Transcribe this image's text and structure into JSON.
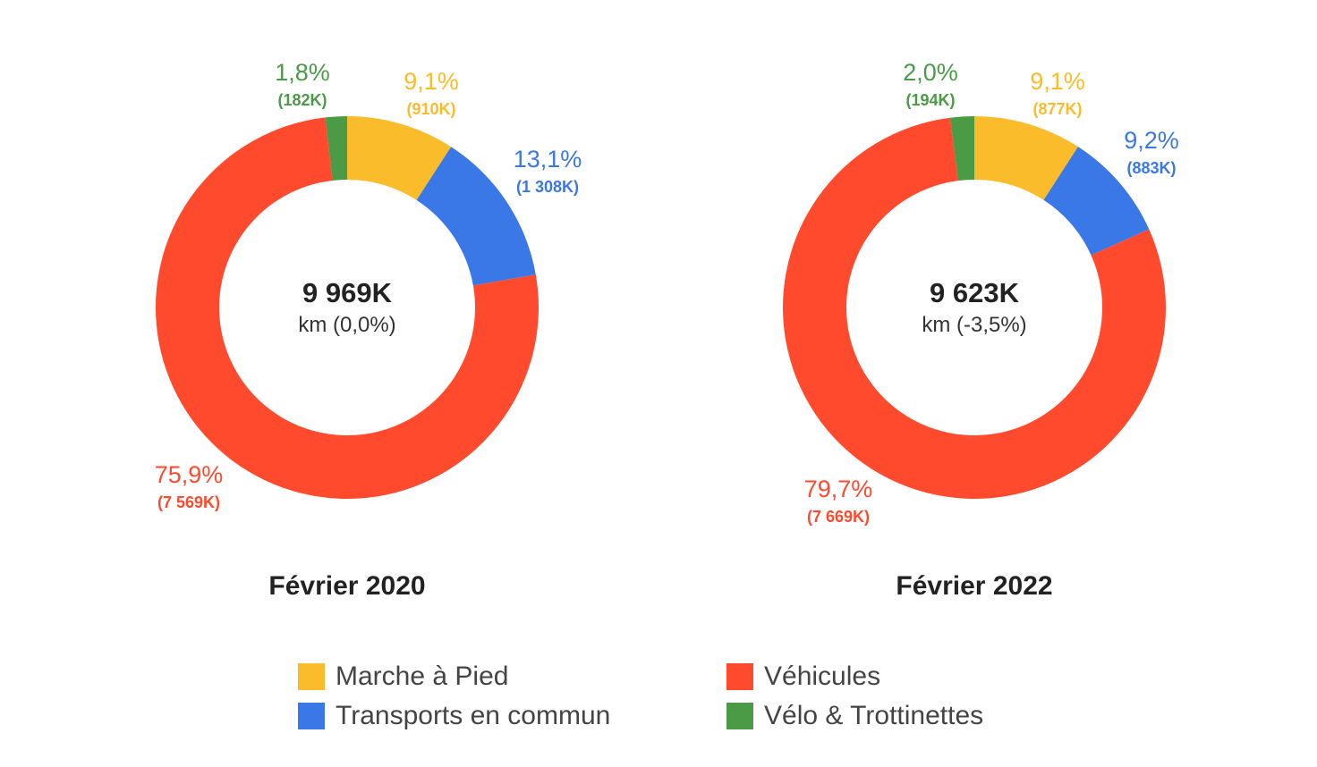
{
  "colors": {
    "walking": "#fbbc2b",
    "transit": "#3b78e7",
    "vehicles": "#ff4a2e",
    "bike": "#4b9a46"
  },
  "legend": [
    {
      "key": "walking",
      "label": "Marche à Pied"
    },
    {
      "key": "vehicles",
      "label": "Véhicules"
    },
    {
      "key": "transit",
      "label": "Transports en commun"
    },
    {
      "key": "bike",
      "label": "Vélo & Trottinettes"
    }
  ],
  "chart_data": [
    {
      "type": "pie",
      "donut": true,
      "title": "Février 2020",
      "center_value": "9 969K",
      "center_label": "km (0,0%)",
      "slices": [
        {
          "key": "walking",
          "name": "Marche à Pied",
          "value": 910,
          "percent": 9.1,
          "label_pct": "9,1%",
          "label_val": "(910K)"
        },
        {
          "key": "transit",
          "name": "Transports en commun",
          "value": 1308,
          "percent": 13.1,
          "label_pct": "13,1%",
          "label_val": "(1 308K)"
        },
        {
          "key": "vehicles",
          "name": "Véhicules",
          "value": 7569,
          "percent": 75.9,
          "label_pct": "75,9%",
          "label_val": "(7 569K)"
        },
        {
          "key": "bike",
          "name": "Vélo & Trottinettes",
          "value": 182,
          "percent": 1.8,
          "label_pct": "1,8%",
          "label_val": "(182K)"
        }
      ]
    },
    {
      "type": "pie",
      "donut": true,
      "title": "Février 2022",
      "center_value": "9 623K",
      "center_label": "km (-3,5%)",
      "slices": [
        {
          "key": "walking",
          "name": "Marche à Pied",
          "value": 877,
          "percent": 9.1,
          "label_pct": "9,1%",
          "label_val": "(877K)"
        },
        {
          "key": "transit",
          "name": "Transports en commun",
          "value": 883,
          "percent": 9.2,
          "label_pct": "9,2%",
          "label_val": "(883K)"
        },
        {
          "key": "vehicles",
          "name": "Véhicules",
          "value": 7669,
          "percent": 79.7,
          "label_pct": "79,7%",
          "label_val": "(7 669K)"
        },
        {
          "key": "bike",
          "name": "Vélo & Trottinettes",
          "value": 194,
          "percent": 2.0,
          "label_pct": "2,0%",
          "label_val": "(194K)"
        }
      ]
    }
  ]
}
